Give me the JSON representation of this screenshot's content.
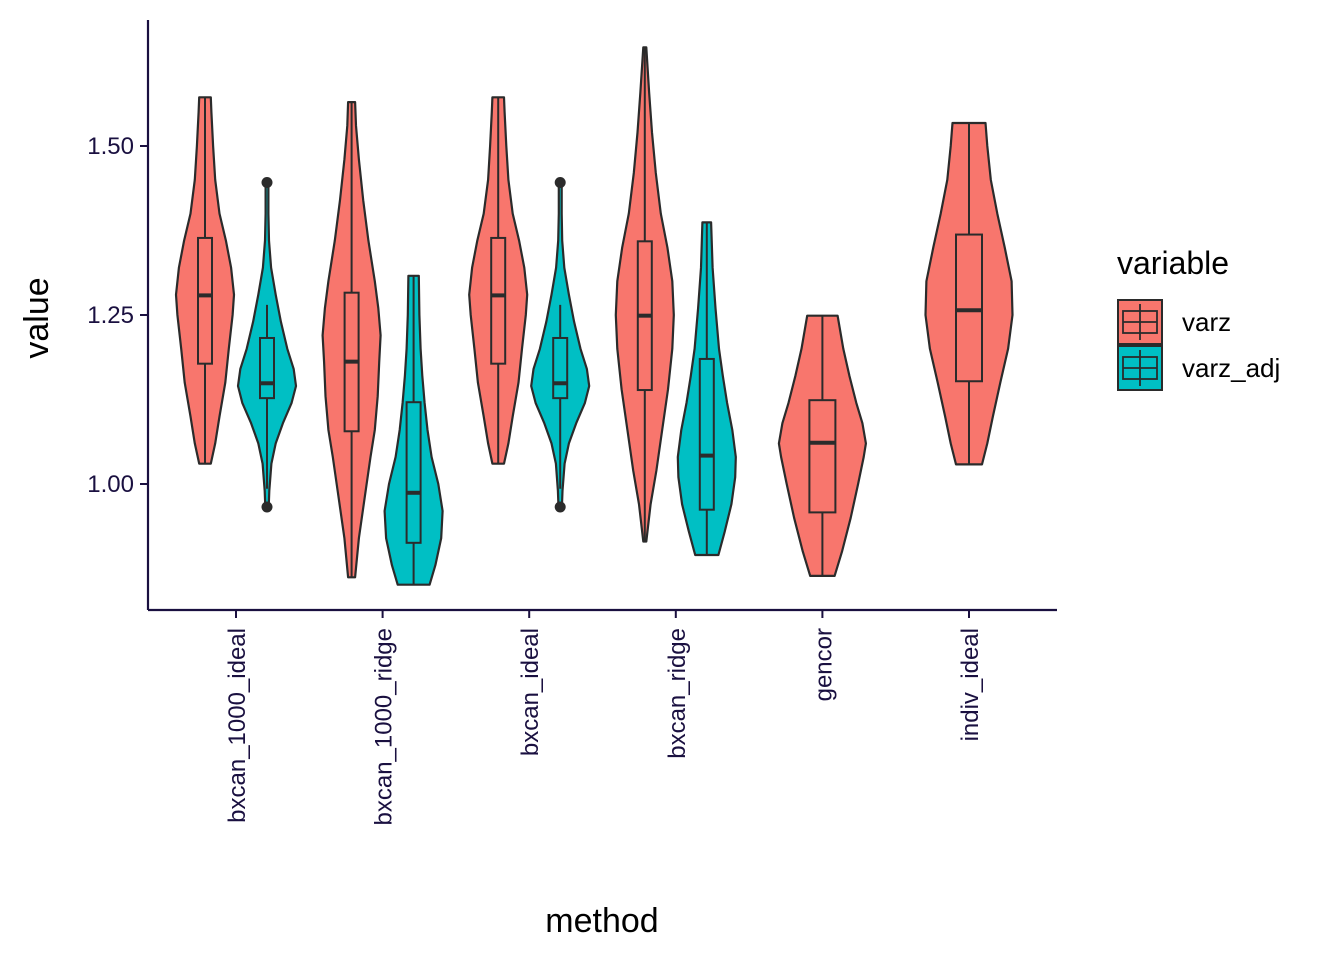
{
  "chart_data": {
    "type": "violin",
    "xlabel": "method",
    "ylabel": "value",
    "categories": [
      "bxcan_1000_ideal",
      "bxcan_1000_ridge",
      "bxcan_ideal",
      "bxcan_ridge",
      "gencor",
      "indiv_ideal"
    ],
    "yticks": [
      {
        "value": 1.0,
        "label": "1.00"
      },
      {
        "value": 1.25,
        "label": "1.25"
      },
      {
        "value": 1.5,
        "label": "1.50"
      }
    ],
    "ylim": [
      0.81,
      1.69
    ],
    "grid": false,
    "legend": {
      "title": "variable",
      "position": "right",
      "entries": [
        {
          "name": "varz",
          "color": "#F8766D"
        },
        {
          "name": "varz_adj",
          "color": "#00BFC4"
        }
      ]
    },
    "series": [
      {
        "name": "varz",
        "color": "#F8766D",
        "groups": [
          {
            "category": "bxcan_1000_ideal",
            "min": 1.03,
            "q1": 1.178,
            "median": 1.279,
            "q3": 1.364,
            "max": 1.572,
            "density": [
              [
                1.03,
                0.2
              ],
              [
                1.06,
                0.35
              ],
              [
                1.1,
                0.5
              ],
              [
                1.15,
                0.7
              ],
              [
                1.2,
                0.82
              ],
              [
                1.25,
                0.95
              ],
              [
                1.28,
                1.0
              ],
              [
                1.32,
                0.9
              ],
              [
                1.36,
                0.72
              ],
              [
                1.4,
                0.5
              ],
              [
                1.45,
                0.35
              ],
              [
                1.5,
                0.28
              ],
              [
                1.55,
                0.22
              ],
              [
                1.572,
                0.2
              ]
            ]
          },
          {
            "category": "bxcan_1000_ridge",
            "min": 0.862,
            "q1": 1.078,
            "median": 1.181,
            "q3": 1.283,
            "max": 1.565,
            "density": [
              [
                0.862,
                0.12
              ],
              [
                0.92,
                0.25
              ],
              [
                0.98,
                0.45
              ],
              [
                1.04,
                0.65
              ],
              [
                1.08,
                0.8
              ],
              [
                1.13,
                0.9
              ],
              [
                1.18,
                0.95
              ],
              [
                1.22,
                1.0
              ],
              [
                1.26,
                0.92
              ],
              [
                1.3,
                0.8
              ],
              [
                1.36,
                0.58
              ],
              [
                1.42,
                0.4
              ],
              [
                1.48,
                0.25
              ],
              [
                1.53,
                0.15
              ],
              [
                1.565,
                0.12
              ]
            ]
          },
          {
            "category": "bxcan_ideal",
            "min": 1.03,
            "q1": 1.178,
            "median": 1.279,
            "q3": 1.364,
            "max": 1.572,
            "density": [
              [
                1.03,
                0.2
              ],
              [
                1.06,
                0.35
              ],
              [
                1.1,
                0.5
              ],
              [
                1.15,
                0.7
              ],
              [
                1.2,
                0.82
              ],
              [
                1.25,
                0.95
              ],
              [
                1.28,
                1.0
              ],
              [
                1.32,
                0.9
              ],
              [
                1.36,
                0.72
              ],
              [
                1.4,
                0.5
              ],
              [
                1.45,
                0.35
              ],
              [
                1.5,
                0.28
              ],
              [
                1.55,
                0.22
              ],
              [
                1.572,
                0.2
              ]
            ]
          },
          {
            "category": "bxcan_ridge",
            "min": 0.915,
            "q1": 1.139,
            "median": 1.249,
            "q3": 1.359,
            "max": 1.646,
            "density": [
              [
                0.915,
                0.05
              ],
              [
                0.97,
                0.2
              ],
              [
                1.02,
                0.4
              ],
              [
                1.08,
                0.6
              ],
              [
                1.14,
                0.8
              ],
              [
                1.2,
                0.95
              ],
              [
                1.25,
                1.0
              ],
              [
                1.3,
                0.95
              ],
              [
                1.35,
                0.78
              ],
              [
                1.4,
                0.55
              ],
              [
                1.46,
                0.38
              ],
              [
                1.52,
                0.25
              ],
              [
                1.58,
                0.15
              ],
              [
                1.646,
                0.05
              ]
            ]
          },
          {
            "category": "gencor",
            "min": 0.864,
            "q1": 0.958,
            "median": 1.061,
            "q3": 1.124,
            "max": 1.249,
            "density": [
              [
                0.864,
                0.28
              ],
              [
                0.9,
                0.45
              ],
              [
                0.95,
                0.65
              ],
              [
                1.0,
                0.82
              ],
              [
                1.04,
                0.95
              ],
              [
                1.06,
                1.0
              ],
              [
                1.09,
                0.92
              ],
              [
                1.12,
                0.78
              ],
              [
                1.16,
                0.62
              ],
              [
                1.2,
                0.48
              ],
              [
                1.249,
                0.35
              ]
            ]
          },
          {
            "category": "indiv_ideal",
            "min": 1.029,
            "q1": 1.152,
            "median": 1.257,
            "q3": 1.369,
            "max": 1.534,
            "density": [
              [
                1.029,
                0.3
              ],
              [
                1.06,
                0.42
              ],
              [
                1.1,
                0.55
              ],
              [
                1.15,
                0.72
              ],
              [
                1.2,
                0.9
              ],
              [
                1.25,
                1.0
              ],
              [
                1.3,
                0.98
              ],
              [
                1.35,
                0.82
              ],
              [
                1.4,
                0.65
              ],
              [
                1.45,
                0.5
              ],
              [
                1.5,
                0.42
              ],
              [
                1.534,
                0.38
              ]
            ]
          }
        ]
      },
      {
        "name": "varz_adj",
        "color": "#00BFC4",
        "groups": [
          {
            "category": "bxcan_1000_ideal",
            "min": 0.993,
            "q1": 1.127,
            "median": 1.149,
            "q3": 1.216,
            "max": 1.265,
            "outliers": [
              0.966,
              1.446
            ],
            "density": [
              [
                0.966,
                0.06
              ],
              [
                0.99,
                0.08
              ],
              [
                1.03,
                0.15
              ],
              [
                1.06,
                0.3
              ],
              [
                1.09,
                0.55
              ],
              [
                1.12,
                0.85
              ],
              [
                1.145,
                1.0
              ],
              [
                1.17,
                0.92
              ],
              [
                1.2,
                0.7
              ],
              [
                1.24,
                0.48
              ],
              [
                1.28,
                0.3
              ],
              [
                1.32,
                0.14
              ],
              [
                1.36,
                0.07
              ],
              [
                1.4,
                0.05
              ],
              [
                1.446,
                0.05
              ]
            ]
          },
          {
            "category": "bxcan_1000_ridge",
            "min": 0.851,
            "q1": 0.913,
            "median": 0.987,
            "q3": 1.121,
            "max": 1.308,
            "density": [
              [
                0.851,
                0.55
              ],
              [
                0.88,
                0.75
              ],
              [
                0.92,
                0.95
              ],
              [
                0.96,
                1.0
              ],
              [
                1.0,
                0.85
              ],
              [
                1.04,
                0.62
              ],
              [
                1.08,
                0.48
              ],
              [
                1.12,
                0.38
              ],
              [
                1.16,
                0.3
              ],
              [
                1.2,
                0.24
              ],
              [
                1.25,
                0.2
              ],
              [
                1.308,
                0.18
              ]
            ]
          },
          {
            "category": "bxcan_ideal",
            "min": 0.993,
            "q1": 1.127,
            "median": 1.149,
            "q3": 1.216,
            "max": 1.265,
            "outliers": [
              0.966,
              1.446
            ],
            "density": [
              [
                0.966,
                0.06
              ],
              [
                0.99,
                0.08
              ],
              [
                1.03,
                0.15
              ],
              [
                1.06,
                0.3
              ],
              [
                1.09,
                0.55
              ],
              [
                1.12,
                0.85
              ],
              [
                1.145,
                1.0
              ],
              [
                1.17,
                0.92
              ],
              [
                1.2,
                0.7
              ],
              [
                1.24,
                0.48
              ],
              [
                1.28,
                0.3
              ],
              [
                1.32,
                0.14
              ],
              [
                1.36,
                0.07
              ],
              [
                1.4,
                0.05
              ],
              [
                1.446,
                0.05
              ]
            ]
          },
          {
            "category": "bxcan_ridge",
            "min": 0.895,
            "q1": 0.962,
            "median": 1.042,
            "q3": 1.185,
            "max": 1.387,
            "density": [
              [
                0.895,
                0.4
              ],
              [
                0.93,
                0.62
              ],
              [
                0.97,
                0.85
              ],
              [
                1.01,
                0.98
              ],
              [
                1.04,
                1.0
              ],
              [
                1.08,
                0.88
              ],
              [
                1.12,
                0.7
              ],
              [
                1.16,
                0.55
              ],
              [
                1.2,
                0.42
              ],
              [
                1.26,
                0.3
              ],
              [
                1.32,
                0.2
              ],
              [
                1.387,
                0.15
              ]
            ]
          }
        ]
      }
    ]
  }
}
